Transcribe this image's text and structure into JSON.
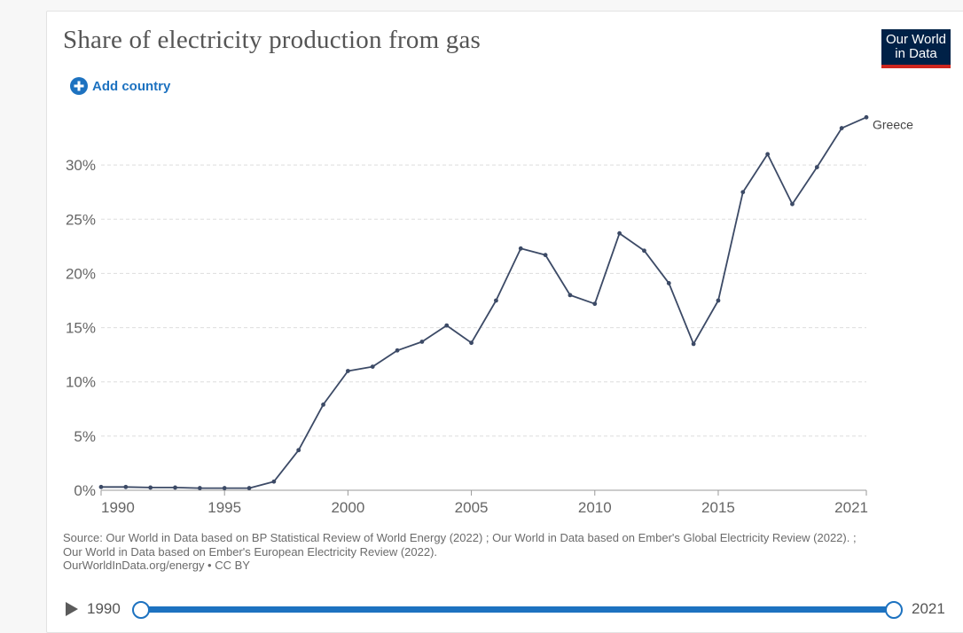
{
  "header": {
    "title": "Share of electricity production from gas",
    "logo_line1": "Our World",
    "logo_line2": "in Data",
    "add_country_label": "Add country"
  },
  "colors": {
    "line": "#3c4a66",
    "accent": "#1d72c0",
    "logo_bg": "#002147",
    "logo_bar": "#ce261e"
  },
  "chart_data": {
    "type": "line",
    "title": "Share of electricity production from gas",
    "xlabel": "",
    "ylabel": "",
    "xlim": [
      1990,
      2021
    ],
    "ylim": [
      0,
      35
    ],
    "yticks": [
      0,
      5,
      10,
      15,
      20,
      25,
      30
    ],
    "ytick_labels": [
      "0%",
      "5%",
      "10%",
      "15%",
      "20%",
      "25%",
      "30%"
    ],
    "xticks": [
      1990,
      1995,
      2000,
      2005,
      2010,
      2015,
      2021
    ],
    "xtick_labels": [
      "1990",
      "1995",
      "2000",
      "2005",
      "2010",
      "2015",
      "2021"
    ],
    "grid": "horizontal dashed",
    "series": [
      {
        "name": "Greece",
        "x": [
          1990,
          1991,
          1992,
          1993,
          1994,
          1995,
          1996,
          1997,
          1998,
          1999,
          2000,
          2001,
          2002,
          2003,
          2004,
          2005,
          2006,
          2007,
          2008,
          2009,
          2010,
          2011,
          2012,
          2013,
          2014,
          2015,
          2016,
          2017,
          2018,
          2019,
          2020,
          2021
        ],
        "values": [
          0.3,
          0.3,
          0.25,
          0.25,
          0.2,
          0.2,
          0.2,
          0.8,
          3.7,
          7.9,
          11.0,
          11.4,
          12.9,
          13.7,
          15.2,
          13.6,
          17.5,
          22.3,
          21.7,
          18.0,
          17.2,
          23.7,
          22.1,
          19.1,
          13.5,
          17.5,
          27.5,
          31.0,
          26.4,
          29.8,
          33.4,
          34.4
        ]
      }
    ]
  },
  "source": {
    "line1": "Source: Our World in Data based on BP Statistical Review of World Energy (2022) ; Our World in Data based on Ember's Global Electricity Review (2022). ;",
    "line2": "Our World in Data based on Ember's European Electricity Review (2022).",
    "line3": "OurWorldInData.org/energy • CC BY"
  },
  "timeline": {
    "start_year": "1990",
    "end_year": "2021"
  }
}
